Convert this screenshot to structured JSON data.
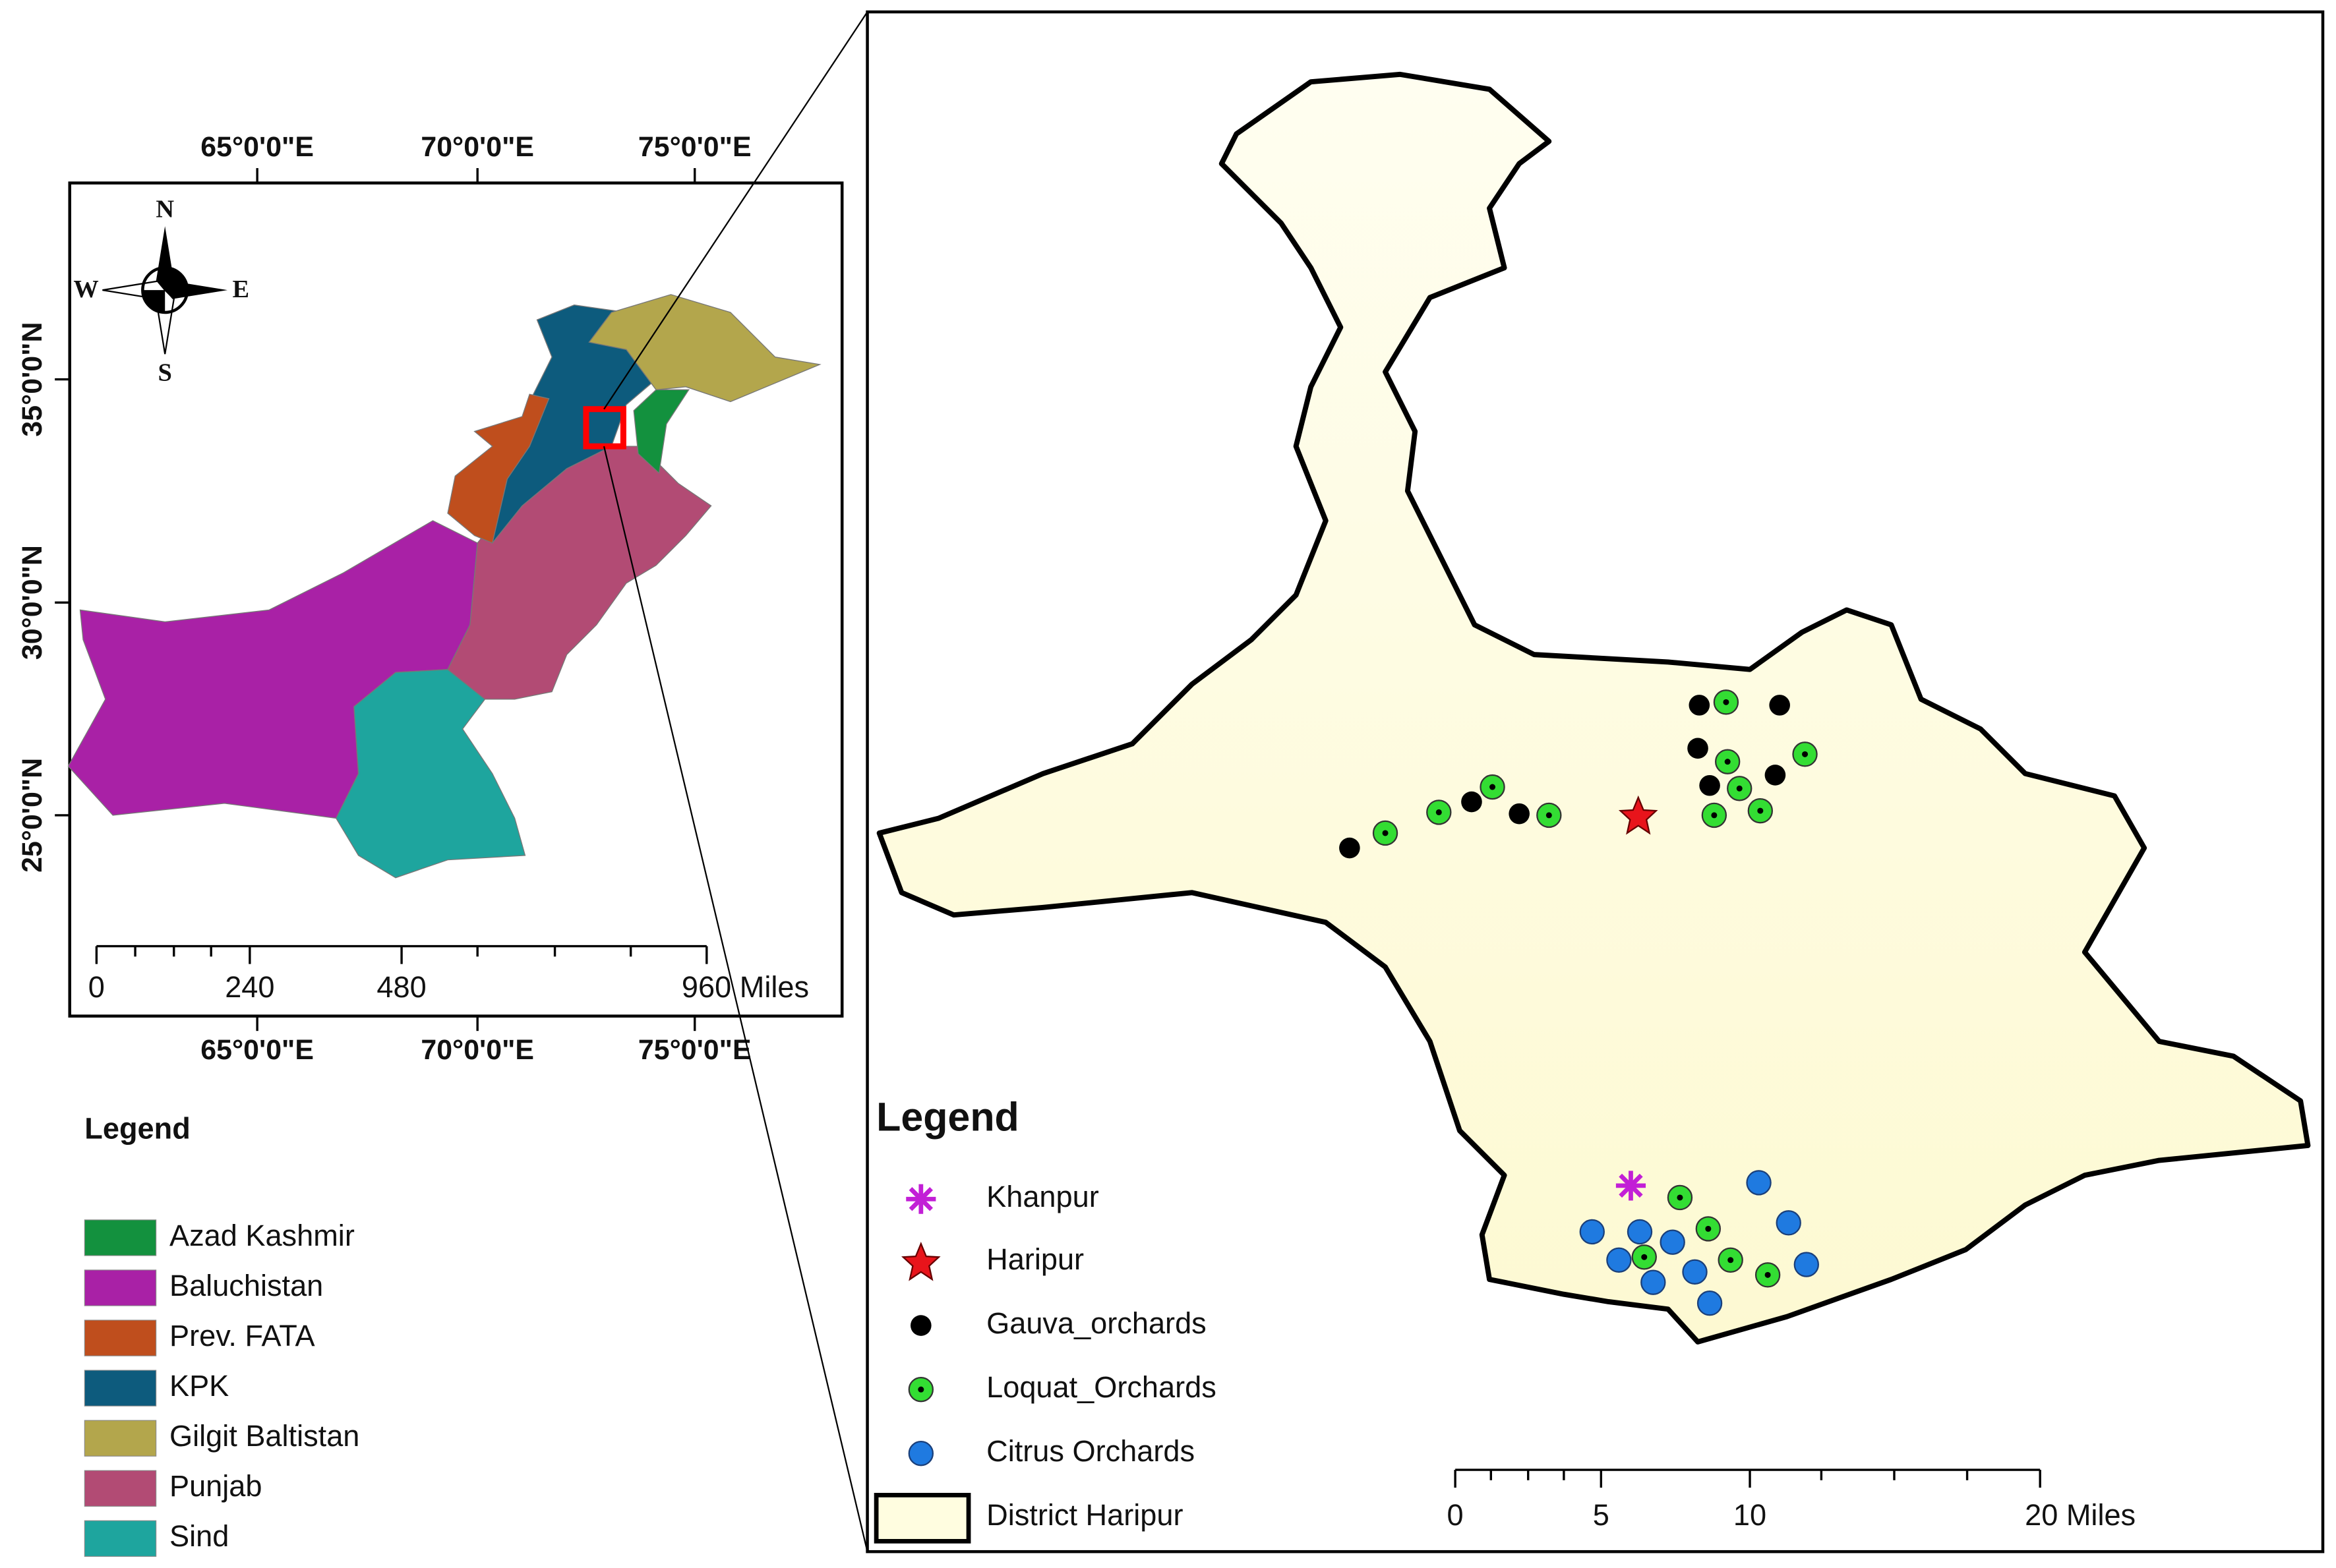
{
  "overview_map": {
    "lon_labels_top": [
      "65°0'0\"E",
      "70°0'0\"E",
      "75°0'0\"E"
    ],
    "lon_labels_bottom": [
      "65°0'0\"E",
      "70°0'0\"E",
      "75°0'0\"E"
    ],
    "lat_labels": [
      "35°0'0\"N",
      "30°0'0\"N",
      "25°0'0\"N"
    ],
    "compass": {
      "n": "N",
      "s": "S",
      "w": "W",
      "e": "E"
    },
    "scale_labels": [
      "0",
      "240",
      "480",
      "960 Miles"
    ],
    "legend": {
      "title": "Legend",
      "items": [
        {
          "label": "Azad Kashmir",
          "color": "#13913e"
        },
        {
          "label": "Baluchistan",
          "color": "#a921a6"
        },
        {
          "label": "Prev. FATA",
          "color": "#bf4e1d"
        },
        {
          "label": "KPK",
          "color": "#0d5b7d"
        },
        {
          "label": "Gilgit Baltistan",
          "color": "#b3a64c"
        },
        {
          "label": "Punjab",
          "color": "#b24b74"
        },
        {
          "label": "Sind",
          "color": "#1ea59e"
        }
      ]
    }
  },
  "detail_map": {
    "legend": {
      "title": "Legend",
      "items": [
        {
          "label": "Khanpur"
        },
        {
          "label": "Haripur"
        },
        {
          "label": "Gauva_orchards"
        },
        {
          "label": "Loquat_Orchards"
        },
        {
          "label": "Citrus Orchards"
        },
        {
          "label": "District Haripur"
        }
      ]
    },
    "scale_labels": [
      "0",
      "5",
      "10",
      "20 Miles"
    ]
  }
}
